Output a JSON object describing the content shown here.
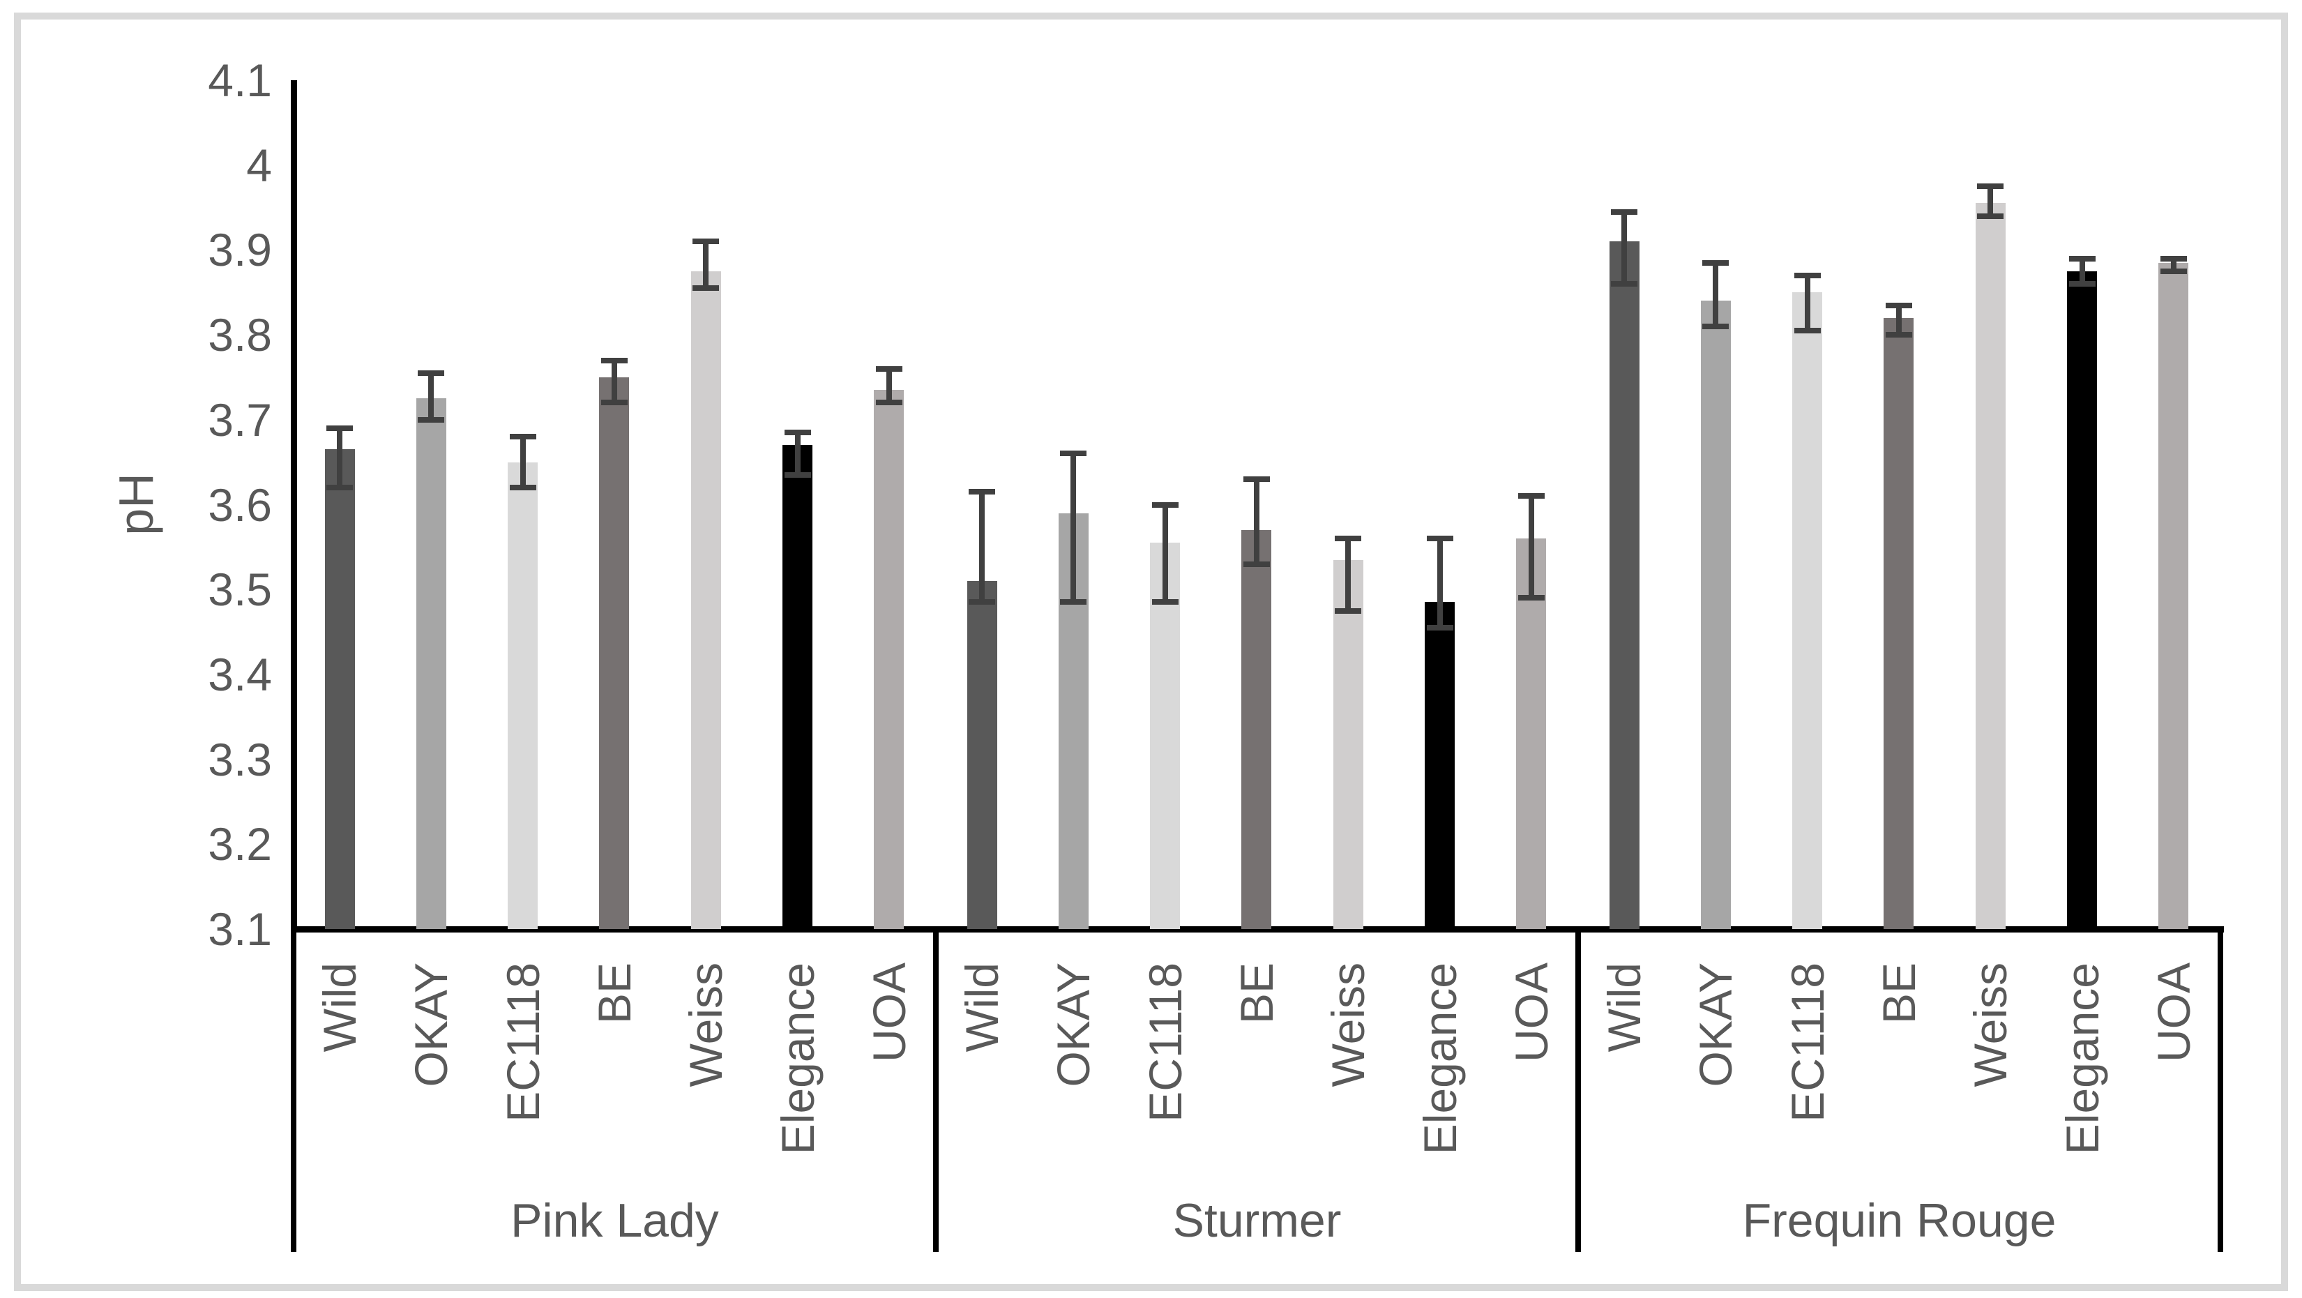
{
  "colors": {
    "axis_line": "#000000",
    "text": "#595959",
    "error_bar": "#404040",
    "figure_border": "#d9d9d9",
    "background": "#ffffff"
  },
  "chart_data": {
    "type": "bar",
    "title": "",
    "xlabel": "",
    "ylabel": "pH",
    "ylim": [
      3.1,
      4.1
    ],
    "y_tick_step": 0.1,
    "y_tick_labels": [
      "4.1",
      "4",
      "3.9",
      "3.8",
      "3.7",
      "3.6",
      "3.5",
      "3.4",
      "3.3",
      "3.2",
      "3.1"
    ],
    "grid": "off",
    "legend": "none",
    "error_bars": true,
    "error_bar_color": "#404040",
    "strains": [
      {
        "name": "Wild",
        "color": "#595959"
      },
      {
        "name": "OKAY",
        "color": "#a6a6a6"
      },
      {
        "name": "EC1118",
        "color": "#d9d9d9"
      },
      {
        "name": "BE",
        "color": "#767171"
      },
      {
        "name": "Weiss",
        "color": "#d0cece"
      },
      {
        "name": "Elegance",
        "color": "#000000"
      },
      {
        "name": "UOA",
        "color": "#afabab"
      }
    ],
    "groups": [
      {
        "label": "Pink Lady",
        "bars": [
          {
            "strain": "Wild",
            "value": 3.665,
            "err_low": 3.62,
            "err_high": 3.69,
            "color": "#595959"
          },
          {
            "strain": "OKAY",
            "value": 3.725,
            "err_low": 3.7,
            "err_high": 3.755,
            "color": "#a6a6a6"
          },
          {
            "strain": "EC1118",
            "value": 3.65,
            "err_low": 3.62,
            "err_high": 3.68,
            "color": "#d9d9d9"
          },
          {
            "strain": "BE",
            "value": 3.75,
            "err_low": 3.72,
            "err_high": 3.77,
            "color": "#767171"
          },
          {
            "strain": "Weiss",
            "value": 3.875,
            "err_low": 3.855,
            "err_high": 3.91,
            "color": "#d0cece"
          },
          {
            "strain": "Elegance",
            "value": 3.67,
            "err_low": 3.635,
            "err_high": 3.685,
            "color": "#000000"
          },
          {
            "strain": "UOA",
            "value": 3.735,
            "err_low": 3.72,
            "err_high": 3.76,
            "color": "#afabab"
          }
        ]
      },
      {
        "label": "Sturmer",
        "bars": [
          {
            "strain": "Wild",
            "value": 3.51,
            "err_low": 3.485,
            "err_high": 3.615,
            "color": "#595959"
          },
          {
            "strain": "OKAY",
            "value": 3.59,
            "err_low": 3.485,
            "err_high": 3.66,
            "color": "#a6a6a6"
          },
          {
            "strain": "EC1118",
            "value": 3.555,
            "err_low": 3.485,
            "err_high": 3.6,
            "color": "#d9d9d9"
          },
          {
            "strain": "BE",
            "value": 3.57,
            "err_low": 3.53,
            "err_high": 3.63,
            "color": "#767171"
          },
          {
            "strain": "Weiss",
            "value": 3.535,
            "err_low": 3.475,
            "err_high": 3.56,
            "color": "#d0cece"
          },
          {
            "strain": "Elegance",
            "value": 3.485,
            "err_low": 3.455,
            "err_high": 3.56,
            "color": "#000000"
          },
          {
            "strain": "UOA",
            "value": 3.56,
            "err_low": 3.49,
            "err_high": 3.61,
            "color": "#afabab"
          }
        ]
      },
      {
        "label": "Frequin Rouge",
        "bars": [
          {
            "strain": "Wild",
            "value": 3.91,
            "err_low": 3.86,
            "err_high": 3.945,
            "color": "#595959"
          },
          {
            "strain": "OKAY",
            "value": 3.84,
            "err_low": 3.81,
            "err_high": 3.885,
            "color": "#a6a6a6"
          },
          {
            "strain": "EC1118",
            "value": 3.85,
            "err_low": 3.805,
            "err_high": 3.87,
            "color": "#d9d9d9"
          },
          {
            "strain": "BE",
            "value": 3.82,
            "err_low": 3.8,
            "err_high": 3.835,
            "color": "#767171"
          },
          {
            "strain": "Weiss",
            "value": 3.955,
            "err_low": 3.94,
            "err_high": 3.975,
            "color": "#d0cece"
          },
          {
            "strain": "Elegance",
            "value": 3.875,
            "err_low": 3.86,
            "err_high": 3.89,
            "color": "#000000"
          },
          {
            "strain": "UOA",
            "value": 3.885,
            "err_low": 3.875,
            "err_high": 3.89,
            "color": "#afabab"
          }
        ]
      }
    ]
  }
}
